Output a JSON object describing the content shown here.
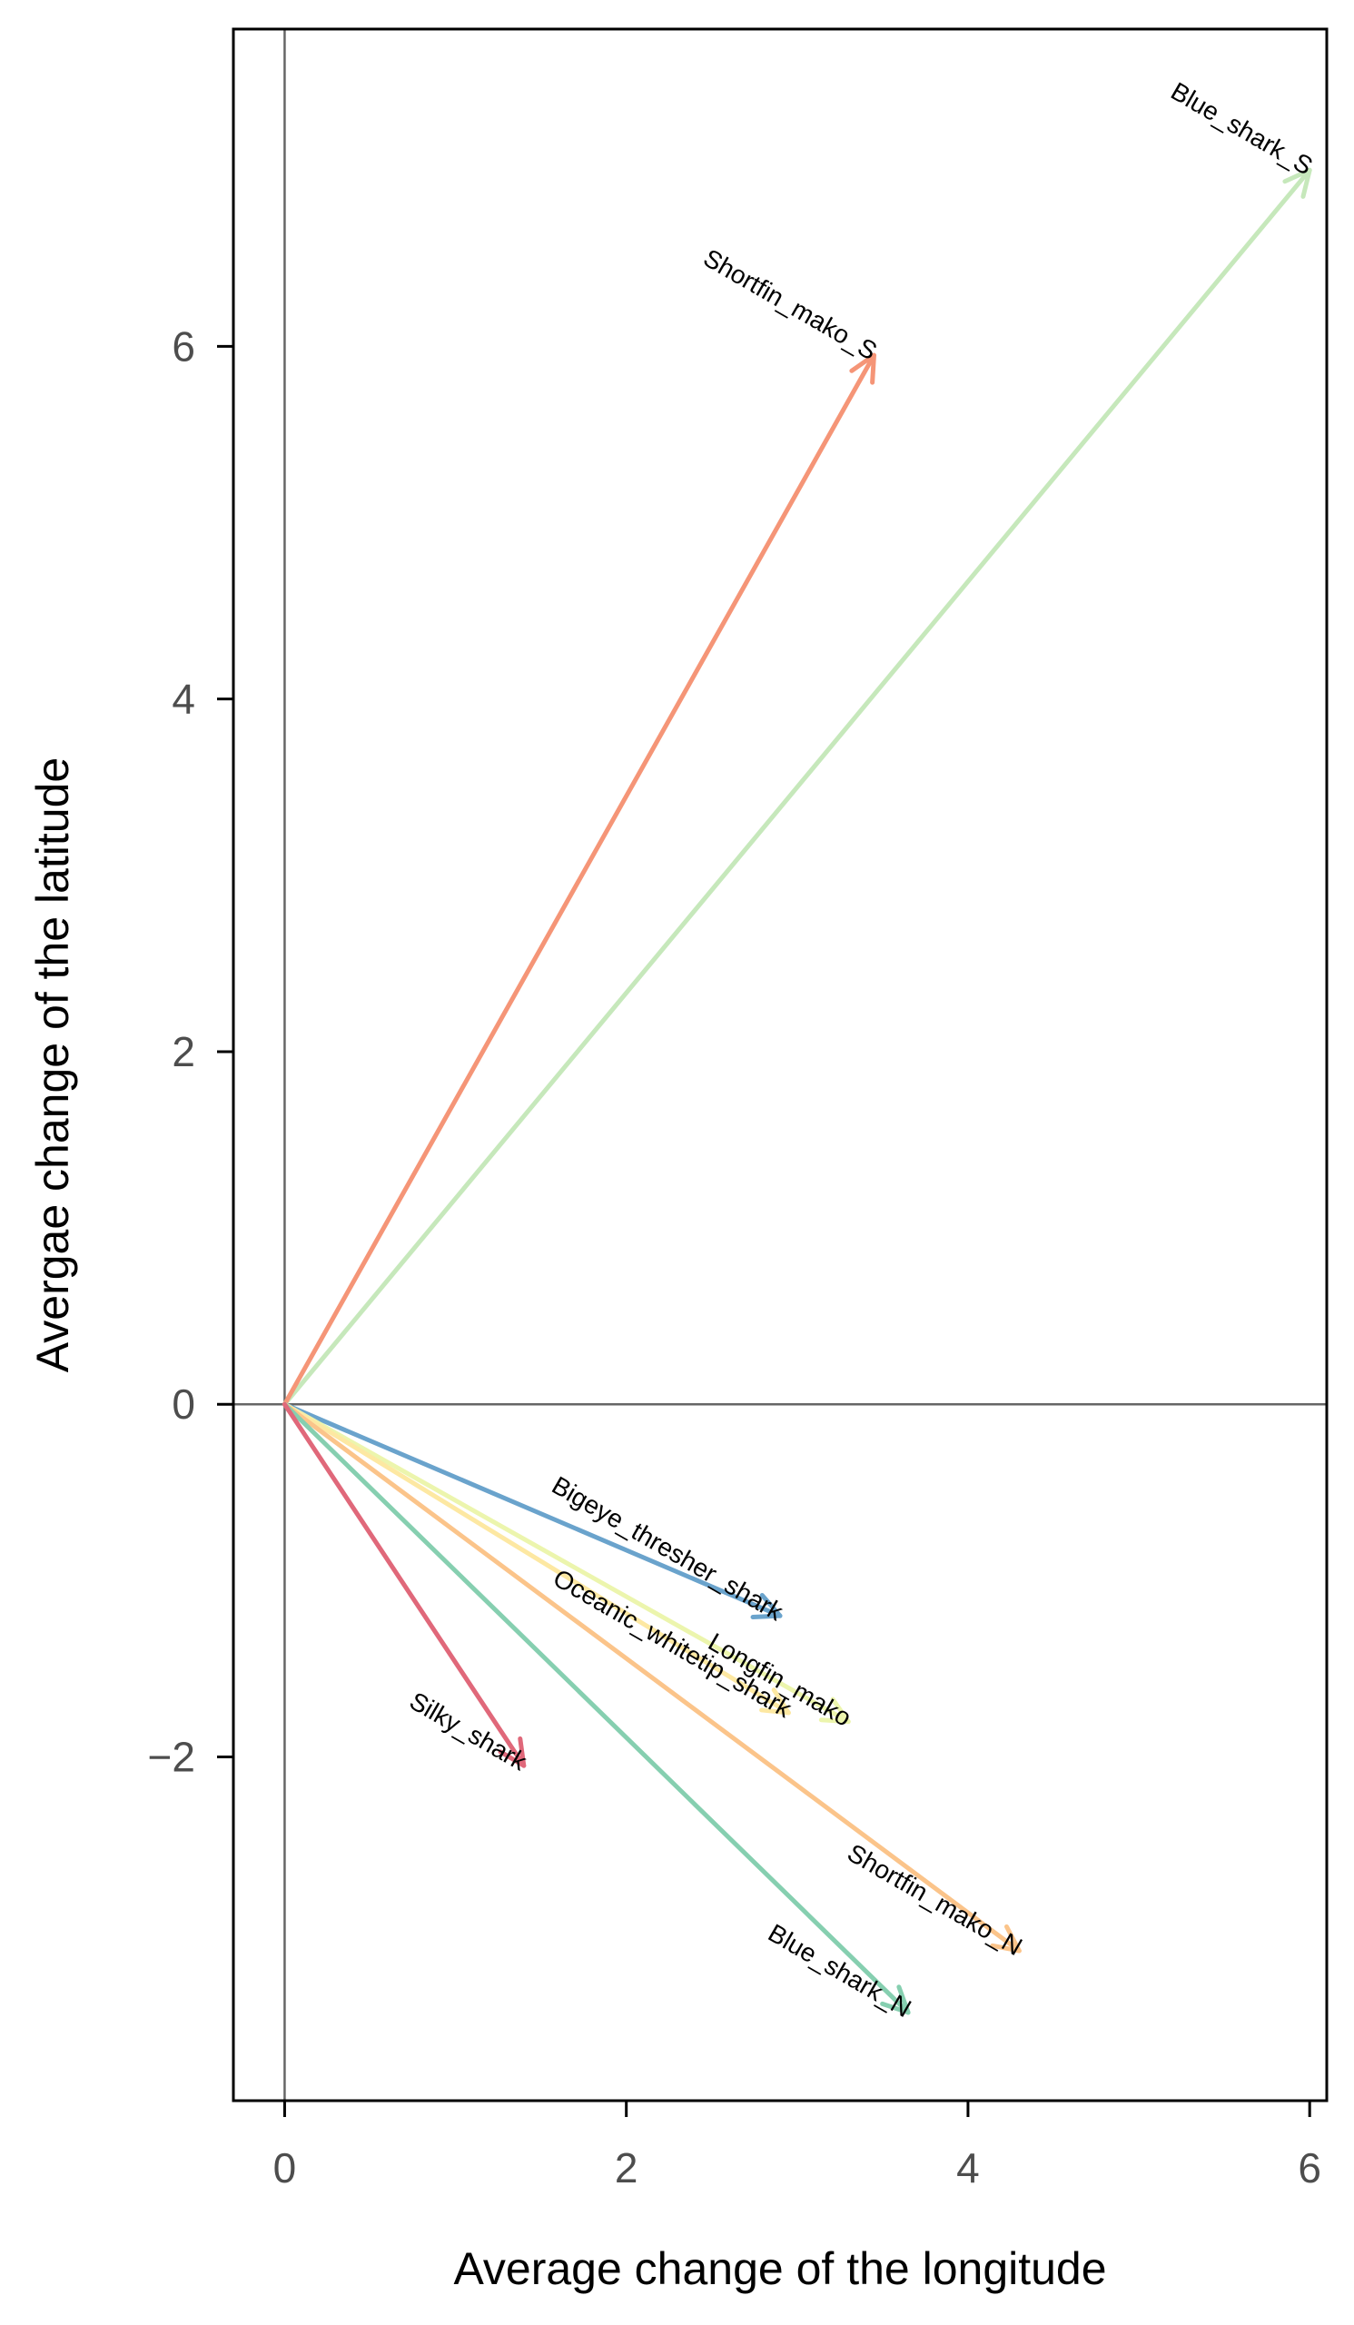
{
  "chart_data": {
    "type": "vector",
    "title": "",
    "xlabel": "Average change of the longitude",
    "ylabel": "Avergae change of the latitude",
    "xlim": [
      -0.3,
      6.1
    ],
    "ylim": [
      -3.95,
      7.8
    ],
    "xticks": [
      0,
      2,
      4,
      6
    ],
    "yticks": [
      -2,
      0,
      2,
      4,
      6
    ],
    "xtick_labels": [
      "0",
      "2",
      "4",
      "6"
    ],
    "ytick_labels": [
      "−2",
      "0",
      "2",
      "4",
      "6"
    ],
    "origin": [
      0,
      0
    ],
    "reference_lines": {
      "x": 0,
      "y": 0,
      "color": "#666666"
    },
    "grid": false,
    "legend": "none",
    "vectors": [
      {
        "label": "Blue_shark_S",
        "x": 6.0,
        "y": 7.0,
        "color": "#c6e8bb"
      },
      {
        "label": "Shortfin_mako_S",
        "x": 3.45,
        "y": 5.95,
        "color": "#f59577"
      },
      {
        "label": "Bigeye_thresher_shark",
        "x": 2.9,
        "y": -1.2,
        "color": "#6aa3cc"
      },
      {
        "label": "Longfin_mako",
        "x": 3.3,
        "y": -1.8,
        "color": "#ecf5ad"
      },
      {
        "label": "Oceanic_whitetip_shark",
        "x": 2.95,
        "y": -1.75,
        "color": "#fde8a2"
      },
      {
        "label": "Shortfin_mako_N",
        "x": 4.3,
        "y": -3.1,
        "color": "#fbc48a"
      },
      {
        "label": "Blue_shark_N",
        "x": 3.65,
        "y": -3.45,
        "color": "#86cfb0"
      },
      {
        "label": "Silky_shark",
        "x": 1.4,
        "y": -2.05,
        "color": "#e0687a"
      }
    ]
  }
}
